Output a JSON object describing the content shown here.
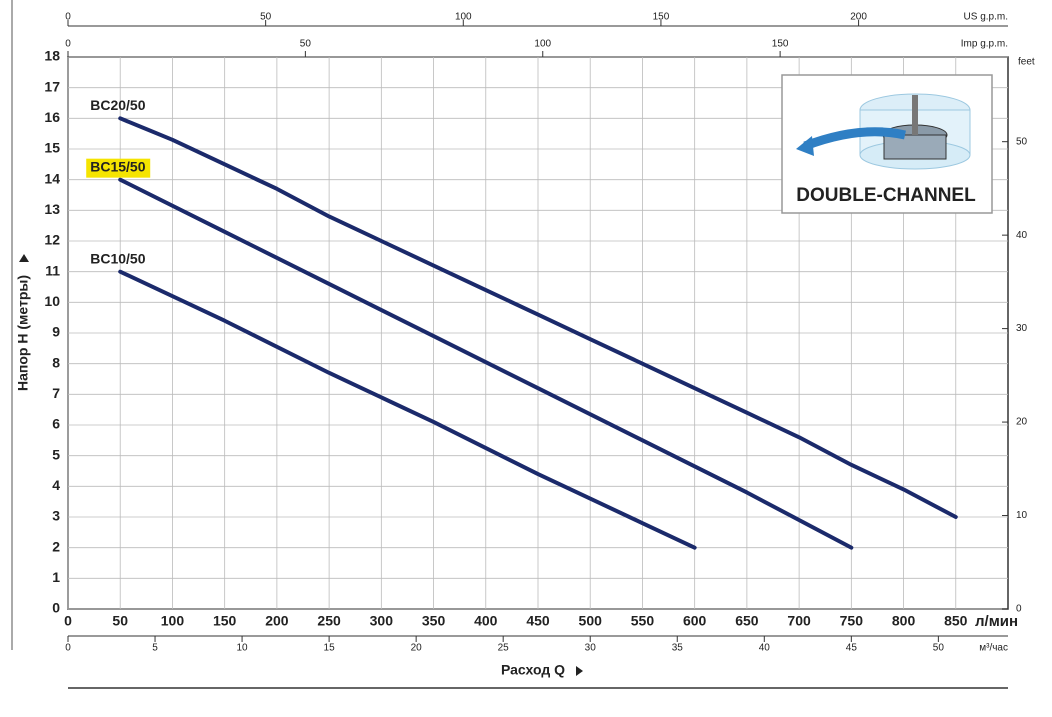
{
  "chart_data": {
    "type": "line",
    "y_label": "Напор Н (метры)",
    "x_label": "Расход Q",
    "x_unit": "л/мин",
    "xlim": [
      0,
      900
    ],
    "xticks": [
      0,
      50,
      100,
      150,
      200,
      250,
      300,
      350,
      400,
      450,
      500,
      550,
      600,
      650,
      700,
      750,
      800,
      850
    ],
    "ylim": [
      0,
      18
    ],
    "yticks": [
      0,
      1,
      2,
      3,
      4,
      5,
      6,
      7,
      8,
      9,
      10,
      11,
      12,
      13,
      14,
      15,
      16,
      17,
      18
    ],
    "grid": true,
    "series": [
      {
        "name": "BC20/50",
        "color": "#1b2a6b",
        "x": [
          50,
          100,
          150,
          200,
          250,
          300,
          350,
          400,
          450,
          500,
          550,
          600,
          650,
          700,
          750,
          800,
          850
        ],
        "values": [
          16,
          15.3,
          14.5,
          13.7,
          12.8,
          12.0,
          11.2,
          10.4,
          9.6,
          8.8,
          8.0,
          7.2,
          6.4,
          5.6,
          4.7,
          3.9,
          3.0
        ]
      },
      {
        "name": "BC15/50",
        "color": "#1b2a6b",
        "label_highlight": "#f5e400",
        "x": [
          50,
          150,
          250,
          350,
          450,
          550,
          650,
          750
        ],
        "values": [
          14,
          12.3,
          10.6,
          8.9,
          7.2,
          5.5,
          3.8,
          2.0
        ]
      },
      {
        "name": "BC10/50",
        "color": "#1b2a6b",
        "x": [
          50,
          150,
          250,
          350,
          450,
          550,
          600
        ],
        "values": [
          11,
          9.4,
          7.7,
          6.1,
          4.4,
          2.8,
          2.0
        ]
      }
    ],
    "secondary_axes": [
      {
        "position": "top-outer",
        "label": "US g.p.m.",
        "lim": [
          0,
          237.8
        ],
        "ticks": [
          0,
          50,
          100,
          150,
          200
        ]
      },
      {
        "position": "top-inner",
        "label": "Imp g.p.m.",
        "lim": [
          0,
          198.0
        ],
        "ticks": [
          0,
          50,
          100,
          150
        ]
      },
      {
        "position": "bottom",
        "label": "м³/час",
        "lim": [
          0,
          54
        ],
        "ticks": [
          0,
          5,
          10,
          15,
          20,
          25,
          30,
          35,
          40,
          45,
          50
        ]
      },
      {
        "position": "right",
        "label": "feet",
        "lim": [
          0,
          59.06
        ],
        "ticks": [
          0,
          10,
          20,
          30,
          40,
          50
        ]
      }
    ],
    "inset_text": "DOUBLE-CHANNEL"
  }
}
